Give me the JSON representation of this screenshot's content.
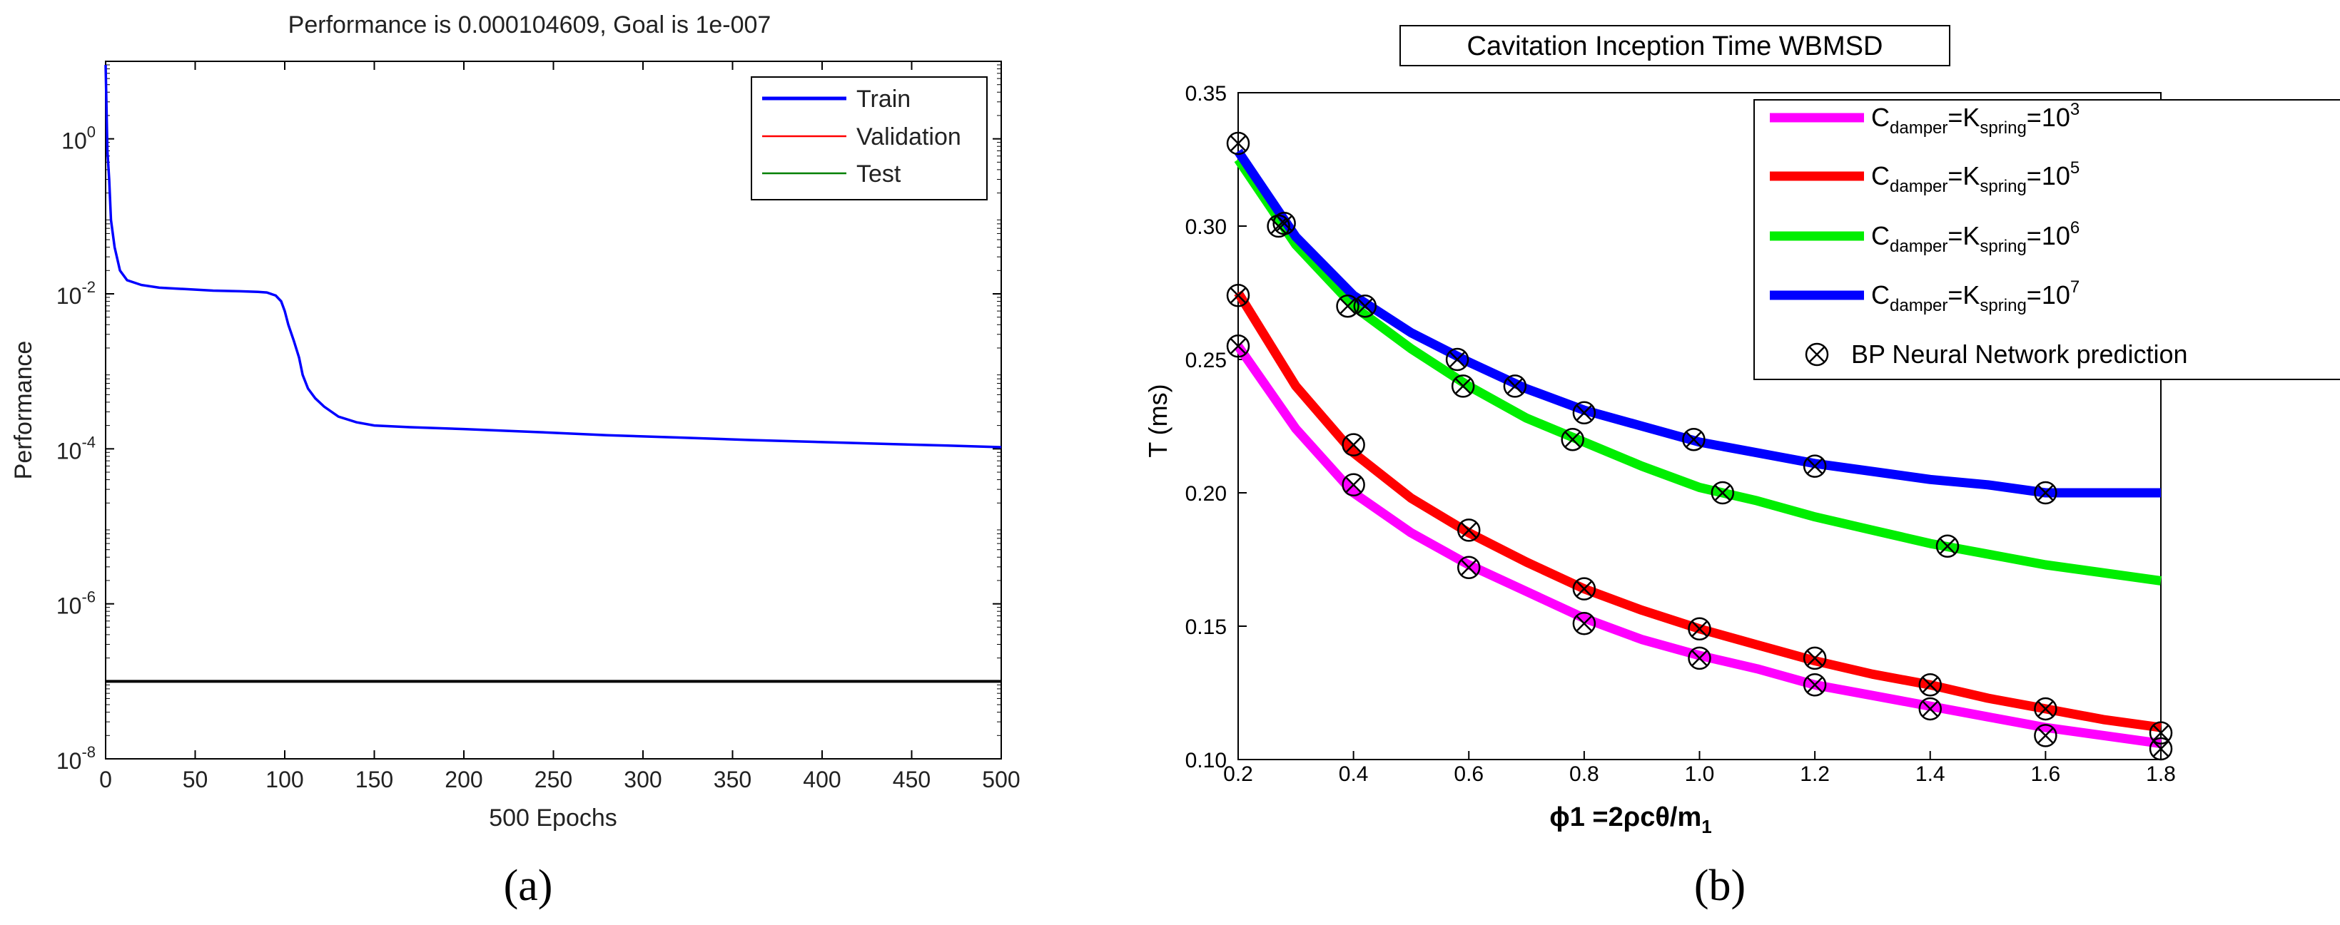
{
  "chart_data": [
    {
      "type": "line",
      "title": "Performance is 0.000104609, Goal is 1e-007",
      "xlabel": "500 Epochs",
      "ylabel": "Performance",
      "yscale": "log",
      "xlim": [
        0,
        500
      ],
      "ylim": [
        1e-08,
        10
      ],
      "xticks": [
        0,
        50,
        100,
        150,
        200,
        250,
        300,
        350,
        400,
        450,
        500
      ],
      "xtick_labels": [
        "0",
        "50",
        "100",
        "150",
        "200",
        "250",
        "300",
        "350",
        "400",
        "450",
        "500"
      ],
      "yticks": [
        1e-08,
        1e-06,
        0.0001,
        0.01,
        1
      ],
      "ytick_labels": [
        [
          "10",
          "-8"
        ],
        [
          "10",
          "-6"
        ],
        [
          "10",
          "-4"
        ],
        [
          "10",
          "-2"
        ],
        [
          "10",
          "0"
        ]
      ],
      "legend_position": "top-right",
      "series": [
        {
          "name": "Train",
          "color": "#0000ff",
          "x": [
            0,
            1,
            2,
            3,
            5,
            8,
            12,
            20,
            30,
            45,
            60,
            75,
            85,
            90,
            95,
            98,
            100,
            102,
            105,
            108,
            110,
            113,
            117,
            122,
            130,
            140,
            150,
            170,
            200,
            240,
            280,
            320,
            360,
            400,
            440,
            470,
            500
          ],
          "y": [
            9,
            0.7,
            0.3,
            0.09,
            0.04,
            0.02,
            0.015,
            0.013,
            0.012,
            0.0115,
            0.011,
            0.0108,
            0.0106,
            0.0104,
            0.0095,
            0.008,
            0.006,
            0.004,
            0.0025,
            0.0015,
            0.0009,
            0.0006,
            0.00045,
            0.00035,
            0.00026,
            0.00022,
            0.0002,
            0.00019,
            0.00018,
            0.000165,
            0.00015,
            0.00014,
            0.00013,
            0.000122,
            0.000115,
            0.00011,
            0.000105
          ]
        },
        {
          "name": "Validation",
          "color": "#ff0000",
          "x": [],
          "y": []
        },
        {
          "name": "Test",
          "color": "#008000",
          "x": [],
          "y": []
        }
      ],
      "goal_line": {
        "y": 1e-07,
        "color": "#000000"
      }
    },
    {
      "type": "line",
      "title": "Cavitation Inception Time WBMSD",
      "xlabel": "ϕ1 =2ρcθ/m",
      "xlabel_sub": "1",
      "ylabel": "T (ms)",
      "xlim": [
        0.2,
        1.8
      ],
      "ylim": [
        0.1,
        0.35
      ],
      "xticks": [
        0.2,
        0.4,
        0.6,
        0.8,
        1.0,
        1.2,
        1.4,
        1.6,
        1.8
      ],
      "xtick_labels": [
        "0.2",
        "0.4",
        "0.6",
        "0.8",
        "1.0",
        "1.2",
        "1.4",
        "1.6",
        "1.8"
      ],
      "yticks": [
        0.1,
        0.15,
        0.2,
        0.25,
        0.3,
        0.35
      ],
      "ytick_labels": [
        "0.10",
        "0.15",
        "0.20",
        "0.25",
        "0.30",
        "0.35"
      ],
      "legend_position": "top-right",
      "x": [
        0.2,
        0.3,
        0.4,
        0.5,
        0.6,
        0.7,
        0.8,
        0.9,
        1.0,
        1.1,
        1.2,
        1.3,
        1.4,
        1.5,
        1.6,
        1.7,
        1.8
      ],
      "series": [
        {
          "name": "C damper = K spring = 10 3",
          "label_parts": {
            "c": "C",
            "csub": "damper",
            "eq": "=K",
            "ksub": "spring",
            "eq2": "=10",
            "exp": "3"
          },
          "color": "#ff00ff",
          "y": [
            0.255,
            0.224,
            0.2,
            0.185,
            0.173,
            0.163,
            0.153,
            0.145,
            0.139,
            0.134,
            0.128,
            0.124,
            0.12,
            0.116,
            0.112,
            0.109,
            0.106
          ]
        },
        {
          "name": "C damper = K spring = 10 5",
          "label_parts": {
            "c": "C",
            "csub": "damper",
            "eq": "=K",
            "ksub": "spring",
            "eq2": "=10",
            "exp": "5"
          },
          "color": "#ff0000",
          "y": [
            0.275,
            0.24,
            0.215,
            0.198,
            0.185,
            0.174,
            0.164,
            0.156,
            0.149,
            0.143,
            0.137,
            0.132,
            0.128,
            0.123,
            0.119,
            0.115,
            0.112
          ]
        },
        {
          "name": "C damper = K spring = 10 6",
          "label_parts": {
            "c": "C",
            "csub": "damper",
            "eq": "=K",
            "ksub": "spring",
            "eq2": "=10",
            "exp": "6"
          },
          "color": "#00ee00",
          "y": [
            0.325,
            0.293,
            0.27,
            0.254,
            0.24,
            0.228,
            0.219,
            0.21,
            0.202,
            0.197,
            0.191,
            0.186,
            0.181,
            0.177,
            0.173,
            0.17,
            0.167
          ]
        },
        {
          "name": "C damper = K spring = 10 7",
          "label_parts": {
            "c": "C",
            "csub": "damper",
            "eq": "=K",
            "ksub": "spring",
            "eq2": "=10",
            "exp": "7"
          },
          "color": "#0000ff",
          "y": [
            0.328,
            0.296,
            0.274,
            0.26,
            0.249,
            0.239,
            0.231,
            0.225,
            0.219,
            0.215,
            0.211,
            0.208,
            0.205,
            0.203,
            0.2,
            0.2,
            0.2
          ]
        }
      ],
      "predictions": {
        "name": "BP Neural Network prediction",
        "points": [
          [
            0.2,
            0.331
          ],
          [
            0.27,
            0.3
          ],
          [
            0.28,
            0.301
          ],
          [
            0.39,
            0.27
          ],
          [
            0.42,
            0.27
          ],
          [
            0.58,
            0.25
          ],
          [
            0.59,
            0.24
          ],
          [
            0.68,
            0.24
          ],
          [
            0.78,
            0.22
          ],
          [
            0.8,
            0.23
          ],
          [
            0.99,
            0.22
          ],
          [
            1.04,
            0.2
          ],
          [
            1.2,
            0.21
          ],
          [
            1.43,
            0.18
          ],
          [
            1.6,
            0.2
          ],
          [
            0.2,
            0.274
          ],
          [
            0.4,
            0.218
          ],
          [
            0.6,
            0.186
          ],
          [
            0.8,
            0.164
          ],
          [
            1.0,
            0.149
          ],
          [
            1.2,
            0.138
          ],
          [
            1.4,
            0.128
          ],
          [
            1.6,
            0.119
          ],
          [
            1.8,
            0.11
          ],
          [
            0.2,
            0.255
          ],
          [
            0.4,
            0.203
          ],
          [
            0.6,
            0.172
          ],
          [
            0.8,
            0.151
          ],
          [
            1.0,
            0.138
          ],
          [
            1.2,
            0.128
          ],
          [
            1.4,
            0.119
          ],
          [
            1.6,
            0.109
          ],
          [
            1.8,
            0.104
          ]
        ]
      }
    }
  ],
  "panels": {
    "a": "(a)",
    "b": "(b)"
  }
}
